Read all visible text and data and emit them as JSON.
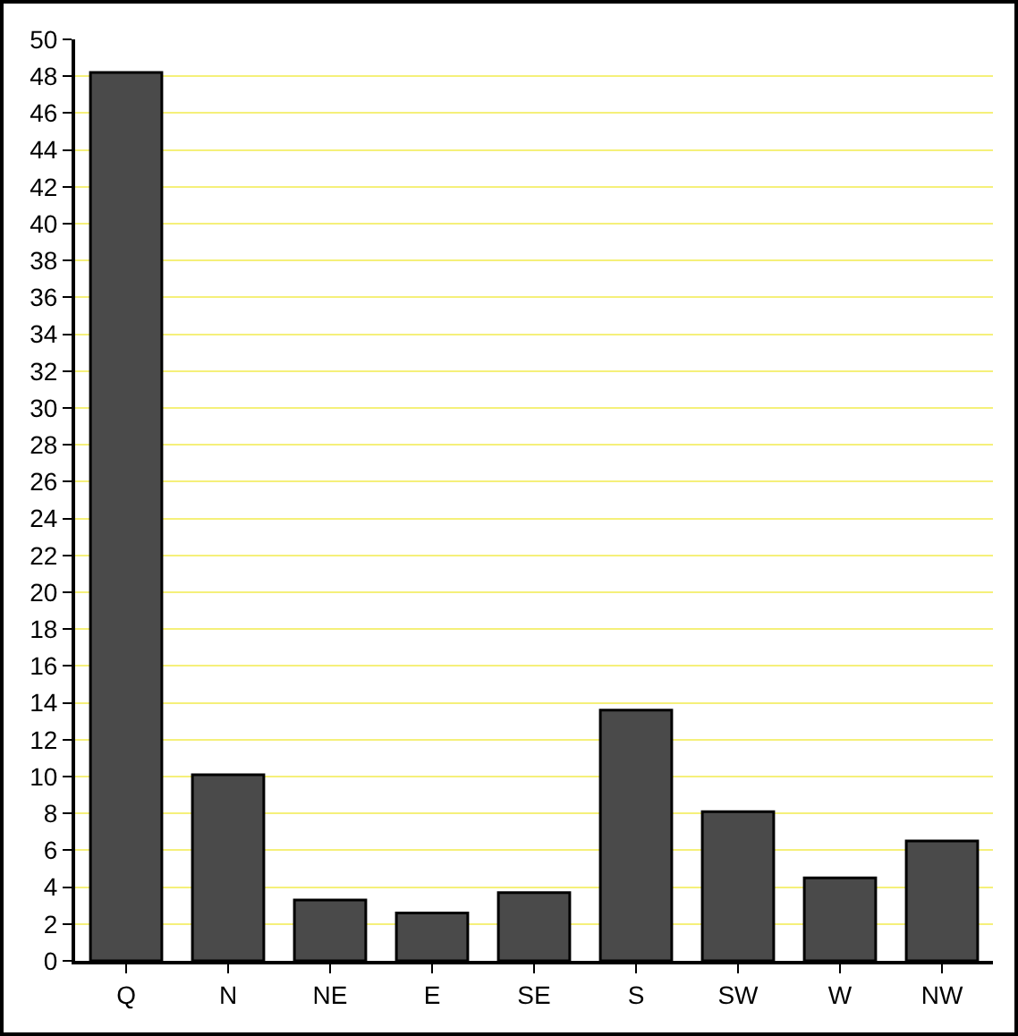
{
  "chart_data": {
    "type": "bar",
    "categories": [
      "Q",
      "N",
      "NE",
      "E",
      "SE",
      "S",
      "SW",
      "W",
      "NW"
    ],
    "values": [
      48.2,
      10.1,
      3.3,
      2.6,
      3.7,
      13.6,
      8.1,
      4.5,
      6.5
    ],
    "color": "#4a4a4a",
    "ylim": [
      0,
      50
    ],
    "yticks": [
      0,
      2,
      4,
      6,
      8,
      10,
      12,
      14,
      16,
      18,
      20,
      22,
      24,
      26,
      28,
      30,
      32,
      34,
      36,
      38,
      40,
      42,
      44,
      46,
      48,
      50
    ],
    "grid": "y"
  }
}
